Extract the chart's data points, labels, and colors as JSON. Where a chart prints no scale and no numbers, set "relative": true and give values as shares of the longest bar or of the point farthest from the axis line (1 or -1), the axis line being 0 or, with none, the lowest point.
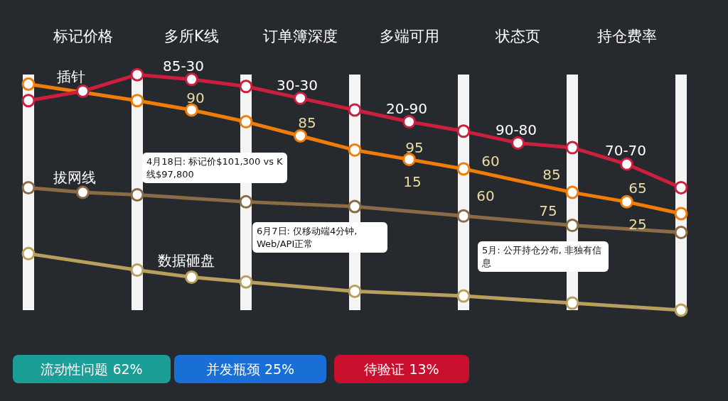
{
  "chart_data": {
    "type": "line",
    "relative": true,
    "categories": [
      null,
      "标记价格",
      null,
      "多所K线",
      null,
      "订单簿深度",
      null,
      "多端可用",
      null,
      "状态页",
      null,
      "持仓费率",
      null
    ],
    "series": [
      {
        "color": "#cc1f3e",
        "values": [
          0.89,
          0.93,
          1.0,
          0.98,
          0.95,
          0.9,
          0.85,
          0.8,
          0.76,
          0.71,
          0.69,
          0.62,
          0.52
        ]
      },
      {
        "color": "#f07d0a",
        "values": [
          0.96,
          null,
          0.89,
          0.85,
          0.8,
          0.74,
          0.68,
          0.64,
          0.6,
          null,
          0.5,
          0.46,
          0.41
        ]
      },
      {
        "color": "#8a6b45",
        "values": [
          0.52,
          0.5,
          0.49,
          null,
          0.46,
          null,
          0.44,
          null,
          0.4,
          null,
          0.36,
          null,
          0.33
        ]
      },
      {
        "color": "#b89f5e",
        "values": [
          0.24,
          null,
          0.17,
          0.14,
          0.12,
          null,
          0.08,
          null,
          0.06,
          null,
          0.03,
          null,
          0
        ]
      }
    ],
    "marker": "circle",
    "line_style": "solid",
    "grid": "x",
    "legend": false,
    "annotations": [
      "插针",
      "拔网线",
      "数据砸盘",
      "85-30",
      "90",
      "30-30",
      "85",
      "20-90",
      "95",
      "15",
      "90-80",
      "60",
      "60",
      "85",
      "75",
      "70-70",
      "65",
      "25",
      "4月18日: 标记价$101,300 vs K线$97,800",
      "6月7日: 仅移动端4分钟, Web/API正常",
      "5月: 公开持仓分布, 非独有信息",
      "流动性问题 62%",
      "并发瓶颈 25%",
      "待验证 13%"
    ]
  }
}
